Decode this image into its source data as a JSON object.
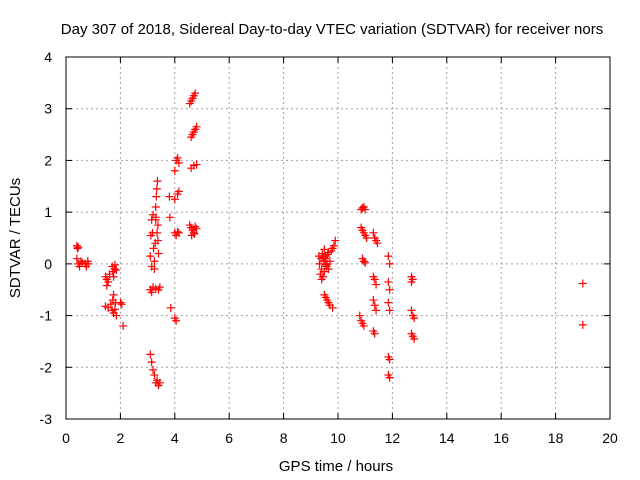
{
  "chart_data": {
    "type": "scatter",
    "title": "Day 307 of 2018, Sidereal Day-to-day VTEC variation (SDTVAR) for receiver nors",
    "xlabel": "GPS time / hours",
    "ylabel": "SDTVAR / TECUs",
    "xlim": [
      0,
      20
    ],
    "ylim": [
      -3,
      4
    ],
    "x_ticks": [
      0,
      2,
      4,
      6,
      8,
      10,
      12,
      14,
      16,
      18,
      20
    ],
    "y_ticks": [
      -3,
      -2,
      -1,
      0,
      1,
      2,
      3,
      4
    ],
    "x_tick_labels": [
      "0",
      "2",
      "4",
      "6",
      "8",
      "10",
      "12",
      "14",
      "16",
      "18",
      "20"
    ],
    "y_tick_labels": [
      "-3",
      "-2",
      "-1",
      "0",
      "1",
      "2",
      "3",
      "4"
    ],
    "grid": true,
    "marker": "+",
    "color": "#ff0000",
    "series": [
      {
        "name": "SDTVAR",
        "points": [
          [
            0.4,
            0.35
          ],
          [
            0.42,
            0.3
          ],
          [
            0.45,
            0.32
          ],
          [
            0.4,
            0.1
          ],
          [
            0.45,
            0.0
          ],
          [
            0.5,
            -0.05
          ],
          [
            0.55,
            0.05
          ],
          [
            0.6,
            0.02
          ],
          [
            0.7,
            0.0
          ],
          [
            0.75,
            -0.05
          ],
          [
            0.8,
            0.05
          ],
          [
            0.82,
            0.0
          ],
          [
            1.45,
            -0.25
          ],
          [
            1.5,
            -0.3
          ],
          [
            1.5,
            -0.42
          ],
          [
            1.55,
            -0.35
          ],
          [
            1.6,
            -0.2
          ],
          [
            1.7,
            -0.05
          ],
          [
            1.72,
            -0.15
          ],
          [
            1.75,
            -0.25
          ],
          [
            1.78,
            -0.1
          ],
          [
            1.8,
            -0.02
          ],
          [
            1.85,
            -0.12
          ],
          [
            1.45,
            -0.82
          ],
          [
            1.55,
            -0.85
          ],
          [
            1.65,
            -0.78
          ],
          [
            1.7,
            -0.9
          ],
          [
            1.72,
            -0.7
          ],
          [
            1.75,
            -0.95
          ],
          [
            1.8,
            -0.88
          ],
          [
            1.82,
            -0.75
          ],
          [
            1.85,
            -1.0
          ],
          [
            1.75,
            -0.6
          ],
          [
            2.0,
            -0.75
          ],
          [
            2.05,
            -0.78
          ],
          [
            2.1,
            -1.2
          ],
          [
            3.1,
            0.15
          ],
          [
            3.12,
            0.55
          ],
          [
            3.15,
            0.85
          ],
          [
            3.18,
            0.6
          ],
          [
            3.2,
            0.95
          ],
          [
            3.22,
            0.3
          ],
          [
            3.25,
            0.05
          ],
          [
            3.28,
            0.4
          ],
          [
            3.3,
            1.1
          ],
          [
            3.32,
            1.3
          ],
          [
            3.34,
            1.45
          ],
          [
            3.36,
            1.6
          ],
          [
            3.3,
            0.85
          ],
          [
            3.38,
            0.75
          ],
          [
            3.4,
            0.2
          ],
          [
            3.25,
            -0.1
          ],
          [
            3.15,
            -0.05
          ],
          [
            3.3,
            0.9
          ],
          [
            3.35,
            0.6
          ],
          [
            3.38,
            0.45
          ],
          [
            3.1,
            -0.5
          ],
          [
            3.15,
            -0.55
          ],
          [
            3.2,
            -0.45
          ],
          [
            3.3,
            -0.48
          ],
          [
            3.4,
            -0.5
          ],
          [
            3.45,
            -0.45
          ],
          [
            3.1,
            -1.75
          ],
          [
            3.15,
            -1.9
          ],
          [
            3.2,
            -2.05
          ],
          [
            3.25,
            -2.15
          ],
          [
            3.3,
            -2.3
          ],
          [
            3.35,
            -2.25
          ],
          [
            3.4,
            -2.35
          ],
          [
            3.45,
            -2.3
          ],
          [
            3.8,
            1.3
          ],
          [
            3.82,
            0.9
          ],
          [
            3.85,
            -0.85
          ],
          [
            4.0,
            -1.05
          ],
          [
            4.05,
            -1.1
          ],
          [
            4.0,
            1.8
          ],
          [
            4.05,
            2.0
          ],
          [
            4.1,
            2.05
          ],
          [
            4.15,
            1.95
          ],
          [
            4.0,
            1.25
          ],
          [
            4.1,
            1.35
          ],
          [
            4.15,
            1.4
          ],
          [
            4.0,
            0.6
          ],
          [
            4.05,
            0.55
          ],
          [
            4.1,
            0.62
          ],
          [
            4.15,
            0.6
          ],
          [
            4.55,
            0.75
          ],
          [
            4.6,
            0.7
          ],
          [
            4.65,
            0.65
          ],
          [
            4.7,
            0.6
          ],
          [
            4.75,
            0.72
          ],
          [
            4.8,
            0.68
          ],
          [
            4.62,
            0.55
          ],
          [
            4.72,
            0.58
          ],
          [
            4.6,
            1.85
          ],
          [
            4.7,
            1.9
          ],
          [
            4.8,
            1.92
          ],
          [
            4.6,
            2.45
          ],
          [
            4.65,
            2.5
          ],
          [
            4.7,
            2.55
          ],
          [
            4.75,
            2.6
          ],
          [
            4.8,
            2.65
          ],
          [
            4.55,
            3.1
          ],
          [
            4.6,
            3.15
          ],
          [
            4.65,
            3.2
          ],
          [
            4.7,
            3.25
          ],
          [
            4.75,
            3.3
          ],
          [
            9.3,
            0.15
          ],
          [
            9.32,
            0.0
          ],
          [
            9.35,
            -0.2
          ],
          [
            9.38,
            0.1
          ],
          [
            9.4,
            -0.1
          ],
          [
            9.42,
            0.2
          ],
          [
            9.45,
            -0.25
          ],
          [
            9.48,
            0.05
          ],
          [
            9.5,
            -0.15
          ],
          [
            9.52,
            0.1
          ],
          [
            9.55,
            0.15
          ],
          [
            9.58,
            -0.05
          ],
          [
            9.6,
            0.0
          ],
          [
            9.62,
            0.18
          ],
          [
            9.65,
            -0.1
          ],
          [
            9.7,
            0.05
          ],
          [
            9.75,
            0.25
          ],
          [
            9.8,
            0.3
          ],
          [
            9.85,
            0.35
          ],
          [
            9.9,
            0.45
          ],
          [
            9.45,
            0.12
          ],
          [
            9.55,
            -0.02
          ],
          [
            9.65,
            0.22
          ],
          [
            9.4,
            -0.3
          ],
          [
            9.5,
            0.28
          ],
          [
            9.5,
            -0.6
          ],
          [
            9.55,
            -0.65
          ],
          [
            9.6,
            -0.7
          ],
          [
            9.65,
            -0.75
          ],
          [
            9.7,
            -0.8
          ],
          [
            9.8,
            -0.85
          ],
          [
            10.8,
            -1.0
          ],
          [
            10.85,
            -1.1
          ],
          [
            10.9,
            -1.15
          ],
          [
            10.95,
            -1.2
          ],
          [
            11.3,
            -1.3
          ],
          [
            11.35,
            -1.35
          ],
          [
            10.85,
            1.05
          ],
          [
            10.9,
            1.08
          ],
          [
            10.95,
            1.1
          ],
          [
            11.0,
            1.05
          ],
          [
            10.85,
            0.7
          ],
          [
            10.9,
            0.65
          ],
          [
            10.95,
            0.6
          ],
          [
            11.0,
            0.55
          ],
          [
            11.05,
            0.5
          ],
          [
            10.9,
            0.1
          ],
          [
            10.95,
            0.05
          ],
          [
            11.0,
            0.02
          ],
          [
            11.3,
            0.6
          ],
          [
            11.35,
            0.5
          ],
          [
            11.4,
            0.45
          ],
          [
            11.45,
            0.4
          ],
          [
            11.3,
            -0.25
          ],
          [
            11.35,
            -0.3
          ],
          [
            11.4,
            -0.4
          ],
          [
            11.3,
            -0.7
          ],
          [
            11.35,
            -0.8
          ],
          [
            11.4,
            -0.9
          ],
          [
            11.85,
            0.15
          ],
          [
            11.9,
            0.0
          ],
          [
            11.85,
            -0.35
          ],
          [
            11.9,
            -0.5
          ],
          [
            11.85,
            -0.75
          ],
          [
            11.9,
            -0.9
          ],
          [
            11.85,
            -1.8
          ],
          [
            11.9,
            -1.85
          ],
          [
            11.85,
            -2.15
          ],
          [
            11.9,
            -2.2
          ],
          [
            12.7,
            -0.25
          ],
          [
            12.75,
            -0.3
          ],
          [
            12.7,
            -0.35
          ],
          [
            12.7,
            -0.9
          ],
          [
            12.75,
            -1.0
          ],
          [
            12.8,
            -1.05
          ],
          [
            12.7,
            -1.35
          ],
          [
            12.75,
            -1.4
          ],
          [
            12.8,
            -1.45
          ],
          [
            19.0,
            -0.38
          ],
          [
            19.0,
            -1.18
          ]
        ]
      }
    ]
  }
}
